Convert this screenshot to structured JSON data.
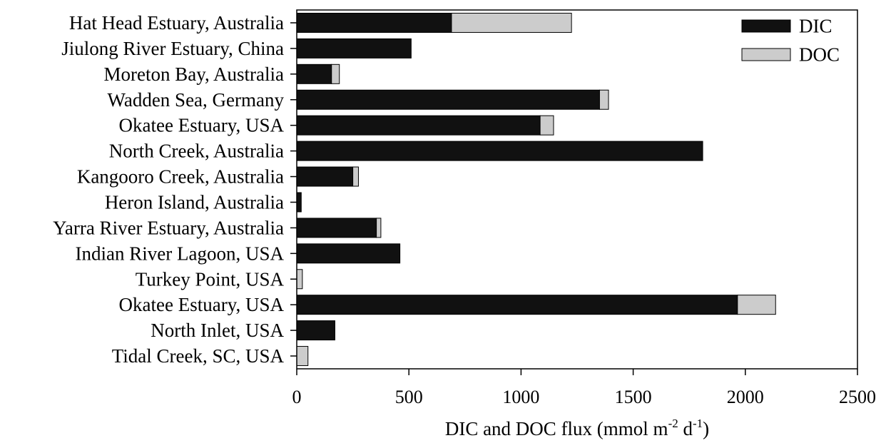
{
  "chart_data": {
    "type": "bar",
    "orientation": "horizontal",
    "stacked": true,
    "categories": [
      "Hat Head Estuary, Australia",
      "Jiulong River Estuary, China",
      "Moreton Bay, Australia",
      "Wadden Sea, Germany",
      "Okatee Estuary, USA",
      "North Creek, Australia",
      "Kangooro Creek, Australia",
      "Heron Island, Australia",
      "Yarra River Estuary, Australia",
      "Indian River Lagoon, USA",
      "Turkey Point, USA",
      "Okatee Estuary, USA",
      "North Inlet, USA",
      "Tidal Creek, SC, USA"
    ],
    "series": [
      {
        "name": "DIC",
        "color": "#111111",
        "values": [
          690,
          510,
          155,
          1350,
          1085,
          1810,
          250,
          20,
          355,
          460,
          0,
          1965,
          170,
          0
        ]
      },
      {
        "name": "DOC",
        "color": "#cccccc",
        "values": [
          535,
          0,
          35,
          40,
          60,
          0,
          25,
          0,
          20,
          0,
          25,
          170,
          0,
          50
        ]
      }
    ],
    "title": "",
    "xlabel": "DIC and DOC flux (mmol m",
    "xlabel_sup1": "-2",
    "xlabel_mid": " d",
    "xlabel_sup2": "-1",
    "xlabel_end": ")",
    "ylabel": "",
    "xlim": [
      0,
      2500
    ],
    "xticks": [
      0,
      500,
      1000,
      1500,
      2000,
      2500
    ],
    "grid": false,
    "legend_position": "top-right"
  }
}
